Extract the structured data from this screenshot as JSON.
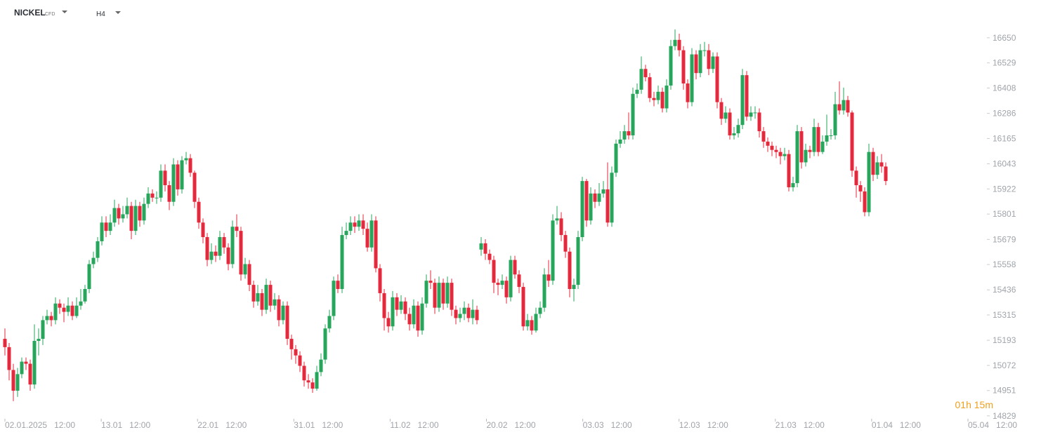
{
  "header": {
    "symbol": "NICKEL",
    "kind": "CFD",
    "timeframe": "H4"
  },
  "countdown": "01h 15m",
  "chart_data": {
    "type": "candlestick",
    "colors": {
      "up": "#26a65b",
      "down": "#e5283c"
    },
    "ylim": [
      14815,
      16832
    ],
    "yticks": [
      16650,
      16529,
      16408,
      16286,
      16165,
      16043,
      15922,
      15801,
      15679,
      15558,
      15436,
      15315,
      15193,
      15072,
      14951,
      14829
    ],
    "x_labels": [
      [
        "02.01.2025",
        "12:00"
      ],
      [
        "13.01",
        "12:00"
      ],
      [
        "22.01",
        "12:00"
      ],
      [
        "31.01",
        "12:00"
      ],
      [
        "11.02",
        "12:00"
      ],
      [
        "20.02",
        "12:00"
      ],
      [
        "03.03",
        "12:00"
      ],
      [
        "12.03",
        "12:00"
      ],
      [
        "21.03",
        "12:00"
      ],
      [
        "01.04",
        "12:00"
      ],
      [
        "05.04",
        "12:00"
      ]
    ],
    "open": [
      15200,
      15160,
      15050,
      14950,
      15030,
      15090,
      15080,
      14980,
      15190,
      15200,
      15290,
      15310,
      15290,
      15370,
      15350,
      15330,
      15360,
      15310,
      15360,
      15380,
      15440,
      15560,
      15590,
      15670,
      15760,
      15720,
      15760,
      15830,
      15780,
      15800,
      15840,
      15720,
      15840,
      15770,
      15850,
      15900,
      15880,
      15880,
      16010,
      15940,
      15860,
      16040,
      15920,
      16060,
      16070,
      16000,
      15860,
      15760,
      15690,
      15580,
      15620,
      15600,
      15690,
      15640,
      15560,
      15740,
      15720,
      15510,
      15560,
      15460,
      15380,
      15420,
      15340,
      15460,
      15360,
      15390,
      15290,
      15360,
      15200,
      15150,
      15120,
      15070,
      15000,
      14990,
      14960,
      15040,
      15100,
      15250,
      15310,
      15480,
      15440,
      15700,
      15720,
      15760,
      15740,
      15770,
      15730,
      15640,
      15770,
      15540,
      15420,
      15300,
      15260,
      15400,
      15340,
      15380,
      15320,
      15270,
      15360,
      15240,
      15370,
      15480,
      15470,
      15350,
      15470,
      15370,
      15470,
      15340,
      15300,
      15320,
      15350,
      15300,
      15340,
      15630,
      15660,
      15610,
      15580,
      15470,
      15460,
      15480,
      15400,
      15580,
      15510,
      15450,
      15260,
      15290,
      15240,
      15320,
      15350,
      15510,
      15480,
      15770,
      15780,
      15700,
      15620,
      15440,
      15460,
      15690,
      15960,
      15770,
      15900,
      15860,
      15900,
      15920,
      15760,
      16000,
      16140,
      16160,
      16200,
      16180,
      16380,
      16400,
      16500,
      16460,
      16360,
      16350,
      16390,
      16310,
      16420,
      16610,
      16640,
      16590,
      16430,
      16340,
      16570,
      16480,
      16590,
      16590,
      16500,
      16560,
      16340,
      16260,
      16290,
      16180,
      16190,
      16230,
      16470,
      16270,
      16290,
      16290,
      16200,
      16150,
      16130,
      16110,
      16100,
      16080,
      16090,
      15930,
      15950,
      16200,
      16050,
      16110,
      16100,
      16220,
      16100,
      16150,
      16180,
      16180,
      16330,
      16300,
      16350,
      16290,
      16010,
      15940,
      15910,
      15810,
      16100,
      15990,
      16050,
      16030
    ],
    "high": [
      15250,
      15180,
      15080,
      15060,
      15110,
      15110,
      15100,
      15270,
      15250,
      15310,
      15340,
      15330,
      15400,
      15390,
      15370,
      15400,
      15380,
      15400,
      15440,
      15460,
      15580,
      15620,
      15690,
      15790,
      15790,
      15800,
      15870,
      15850,
      15840,
      15880,
      15860,
      15870,
      15860,
      15880,
      15930,
      15920,
      15910,
      16040,
      16040,
      15960,
      16070,
      16060,
      16080,
      16100,
      16090,
      16010,
      15880,
      15780,
      15710,
      15660,
      15650,
      15720,
      15710,
      15660,
      15770,
      15800,
      15740,
      15590,
      15580,
      15480,
      15460,
      15440,
      15490,
      15480,
      15420,
      15410,
      15380,
      15380,
      15220,
      15170,
      15140,
      15090,
      15030,
      15010,
      15070,
      15130,
      15270,
      15340,
      15500,
      15510,
      15740,
      15760,
      15790,
      15790,
      15800,
      15800,
      15760,
      15800,
      15790,
      15560,
      15440,
      15330,
      15430,
      15420,
      15410,
      15400,
      15350,
      15390,
      15380,
      15400,
      15510,
      15530,
      15490,
      15500,
      15490,
      15500,
      15490,
      15360,
      15350,
      15380,
      15370,
      15390,
      15360,
      15690,
      15680,
      15630,
      15600,
      15490,
      15510,
      15500,
      15600,
      15600,
      15530,
      15470,
      15320,
      15310,
      15350,
      15380,
      15540,
      15580,
      15800,
      15840,
      15810,
      15720,
      15640,
      15490,
      15720,
      15980,
      15970,
      15930,
      15920,
      15950,
      15960,
      16050,
      16030,
      16160,
      16200,
      16230,
      16290,
      16410,
      16430,
      16560,
      16520,
      16480,
      16390,
      16420,
      16410,
      16450,
      16640,
      16690,
      16670,
      16610,
      16450,
      16600,
      16590,
      16620,
      16630,
      16620,
      16580,
      16580,
      16360,
      16320,
      16310,
      16220,
      16260,
      16500,
      16490,
      16320,
      16320,
      16310,
      16220,
      16170,
      16150,
      16130,
      16120,
      16120,
      16110,
      15980,
      16230,
      16220,
      16140,
      16130,
      16260,
      16240,
      16180,
      16280,
      16210,
      16390,
      16440,
      16410,
      16370,
      16300,
      16030,
      15960,
      15930,
      16140,
      16120,
      16080,
      16090,
      16050
    ],
    "low": [
      15120,
      15000,
      14900,
      14920,
      15010,
      15050,
      14950,
      14960,
      15120,
      15170,
      15270,
      15260,
      15270,
      15320,
      15280,
      15310,
      15290,
      15300,
      15340,
      15370,
      15420,
      15540,
      15570,
      15650,
      15690,
      15700,
      15740,
      15750,
      15760,
      15780,
      15680,
      15700,
      15740,
      15750,
      15830,
      15860,
      15850,
      15860,
      15910,
      15820,
      15840,
      15890,
      15900,
      16040,
      15980,
      15830,
      15730,
      15660,
      15550,
      15560,
      15570,
      15580,
      15610,
      15530,
      15540,
      15690,
      15480,
      15490,
      15430,
      15350,
      15360,
      15310,
      15320,
      15330,
      15340,
      15260,
      15270,
      15170,
      15100,
      15080,
      15040,
      14970,
      14960,
      14940,
      14950,
      15020,
      15080,
      15230,
      15290,
      15420,
      15420,
      15680,
      15700,
      15710,
      15720,
      15700,
      15620,
      15620,
      15520,
      15380,
      15240,
      15230,
      15240,
      15310,
      15320,
      15290,
      15240,
      15250,
      15210,
      15220,
      15350,
      15440,
      15320,
      15330,
      15340,
      15350,
      15310,
      15270,
      15280,
      15290,
      15280,
      15270,
      15270,
      15600,
      15580,
      15560,
      15420,
      15410,
      15440,
      15370,
      15380,
      15490,
      15420,
      15240,
      15240,
      15220,
      15230,
      15300,
      15330,
      15450,
      15460,
      15750,
      15670,
      15590,
      15400,
      15380,
      15440,
      15670,
      15740,
      15750,
      15830,
      15840,
      15880,
      15740,
      15740,
      15980,
      16120,
      16140,
      16160,
      16160,
      16360,
      16380,
      16440,
      16340,
      16320,
      16330,
      16290,
      16290,
      16400,
      16590,
      16560,
      16400,
      16310,
      16320,
      16450,
      16460,
      16560,
      16470,
      16480,
      16310,
      16230,
      16240,
      16160,
      16160,
      16170,
      16210,
      16250,
      16250,
      16260,
      16170,
      16120,
      16100,
      16080,
      16070,
      16040,
      16060,
      15910,
      15910,
      15930,
      16020,
      16030,
      16070,
      16080,
      16080,
      16090,
      16130,
      16160,
      16160,
      16280,
      16280,
      16270,
      15980,
      15880,
      15860,
      15790,
      15790,
      15960,
      15970,
      16000,
      15940
    ],
    "close": [
      15160,
      15050,
      14950,
      15030,
      15090,
      15080,
      14980,
      15190,
      15200,
      15290,
      15310,
      15290,
      15370,
      15350,
      15330,
      15360,
      15310,
      15360,
      15380,
      15440,
      15560,
      15590,
      15670,
      15760,
      15720,
      15760,
      15830,
      15780,
      15800,
      15840,
      15720,
      15840,
      15770,
      15850,
      15900,
      15880,
      15880,
      16010,
      15940,
      15860,
      16040,
      15920,
      16060,
      16070,
      16000,
      15860,
      15760,
      15690,
      15580,
      15620,
      15600,
      15690,
      15640,
      15560,
      15740,
      15720,
      15510,
      15560,
      15460,
      15380,
      15420,
      15340,
      15460,
      15360,
      15390,
      15290,
      15360,
      15200,
      15150,
      15120,
      15070,
      15000,
      14990,
      14960,
      15040,
      15100,
      15250,
      15310,
      15480,
      15440,
      15700,
      15720,
      15760,
      15740,
      15770,
      15730,
      15640,
      15770,
      15540,
      15420,
      15300,
      15260,
      15400,
      15340,
      15380,
      15320,
      15270,
      15360,
      15240,
      15370,
      15480,
      15470,
      15350,
      15470,
      15370,
      15470,
      15340,
      15300,
      15320,
      15350,
      15300,
      15340,
      15290,
      15660,
      15610,
      15580,
      15470,
      15460,
      15480,
      15400,
      15580,
      15510,
      15450,
      15260,
      15290,
      15240,
      15320,
      15350,
      15510,
      15480,
      15770,
      15780,
      15700,
      15620,
      15440,
      15460,
      15690,
      15960,
      15770,
      15900,
      15860,
      15900,
      15920,
      15760,
      16000,
      16140,
      16160,
      16200,
      16180,
      16380,
      16400,
      16500,
      16460,
      16360,
      16350,
      16390,
      16310,
      16420,
      16610,
      16640,
      16590,
      16430,
      16340,
      16570,
      16480,
      16590,
      16590,
      16500,
      16560,
      16340,
      16260,
      16290,
      16180,
      16190,
      16230,
      16470,
      16270,
      16290,
      16290,
      16200,
      16150,
      16130,
      16110,
      16100,
      16080,
      16090,
      15930,
      15950,
      16200,
      16050,
      16110,
      16100,
      16220,
      16100,
      16150,
      16180,
      16180,
      16330,
      16300,
      16350,
      16290,
      16010,
      15940,
      15910,
      15810,
      16100,
      15990,
      16050,
      16030,
      15960
    ]
  }
}
